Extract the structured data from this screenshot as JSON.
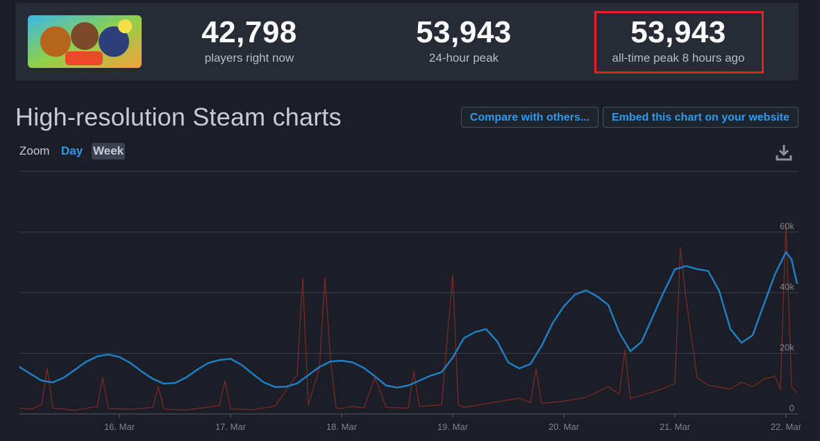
{
  "header": {
    "logo_alt": "Bloons TD 6",
    "stats": [
      {
        "value": "42,798",
        "label": "players right now"
      },
      {
        "value": "53,943",
        "label": "24-hour peak"
      },
      {
        "value": "53,943",
        "label": "all-time peak 8 hours ago"
      }
    ]
  },
  "section": {
    "title": "High-resolution Steam charts",
    "compare_button": "Compare with others...",
    "embed_button": "Embed this chart on your website"
  },
  "zoom": {
    "label": "Zoom",
    "day": "Day",
    "week": "Week"
  },
  "colors": {
    "background": "#1b1e26",
    "panel": "#262b36",
    "accent": "#2a9bf2",
    "players_line": "#1f7ec4",
    "twitch_line": "#7a2a22",
    "highlight": "#e0232b"
  },
  "chart_data": {
    "type": "line",
    "x_ticks": [
      "16. Mar",
      "17. Mar",
      "18. Mar",
      "19. Mar",
      "20. Mar",
      "21. Mar",
      "22. Mar"
    ],
    "y_ticks": [
      "0",
      "20k",
      "40k",
      "60k"
    ],
    "ylim": [
      0,
      62000
    ],
    "xlim": [
      15.1,
      22.1
    ],
    "grid": true,
    "series": [
      {
        "name": "",
        "color": "#1f7ec4",
        "x": [
          15.1,
          15.2,
          15.3,
          15.4,
          15.5,
          15.6,
          15.7,
          15.8,
          15.9,
          16.0,
          16.1,
          16.2,
          16.3,
          16.4,
          16.5,
          16.6,
          16.7,
          16.8,
          16.9,
          17.0,
          17.1,
          17.2,
          17.3,
          17.4,
          17.5,
          17.6,
          17.7,
          17.8,
          17.9,
          18.0,
          18.1,
          18.2,
          18.3,
          18.4,
          18.5,
          18.6,
          18.7,
          18.8,
          18.9,
          19.0,
          19.1,
          19.2,
          19.3,
          19.4,
          19.5,
          19.6,
          19.7,
          19.8,
          19.9,
          20.0,
          20.1,
          20.2,
          20.3,
          20.4,
          20.5,
          20.6,
          20.7,
          20.8,
          20.9,
          21.0,
          21.1,
          21.2,
          21.3,
          21.4,
          21.5,
          21.6,
          21.7,
          21.8,
          21.9,
          22.0,
          22.05,
          22.1
        ],
        "values": [
          15500,
          13200,
          11000,
          10400,
          12000,
          14600,
          17200,
          19000,
          19600,
          18800,
          16800,
          14000,
          11600,
          10000,
          10200,
          12000,
          14600,
          16800,
          17800,
          18200,
          16200,
          13200,
          10400,
          8900,
          9000,
          10100,
          12800,
          15500,
          17300,
          17600,
          17000,
          15200,
          12400,
          9400,
          8700,
          9400,
          11000,
          12600,
          13800,
          18600,
          25000,
          27000,
          28000,
          24000,
          17000,
          15000,
          16500,
          22500,
          30000,
          35500,
          39400,
          40800,
          38800,
          36000,
          26800,
          20700,
          23800,
          32000,
          40200,
          47700,
          48800,
          47800,
          47200,
          40500,
          28000,
          23500,
          26000,
          36000,
          46000,
          53400,
          51000,
          43000
        ]
      },
      {
        "name": "",
        "color": "#7a2a22",
        "x": [
          15.1,
          15.2,
          15.3,
          15.35,
          15.4,
          15.6,
          15.8,
          15.85,
          15.9,
          16.1,
          16.3,
          16.35,
          16.4,
          16.6,
          16.9,
          16.95,
          17.0,
          17.2,
          17.4,
          17.6,
          17.65,
          17.7,
          17.8,
          17.85,
          17.9,
          17.95,
          18.0,
          18.1,
          18.2,
          18.3,
          18.4,
          18.6,
          18.65,
          18.7,
          18.9,
          19.0,
          19.05,
          19.1,
          19.2,
          19.4,
          19.6,
          19.7,
          19.75,
          19.8,
          20.0,
          20.2,
          20.4,
          20.5,
          20.55,
          20.6,
          20.8,
          20.9,
          21.0,
          21.05,
          21.1,
          21.2,
          21.3,
          21.5,
          21.6,
          21.7,
          21.8,
          21.9,
          21.95,
          22.0,
          22.05,
          22.1
        ],
        "values": [
          2000,
          1500,
          3000,
          15000,
          2000,
          1200,
          2500,
          12000,
          1800,
          1500,
          2200,
          9000,
          1600,
          1300,
          2800,
          11000,
          1700,
          1400,
          2600,
          13000,
          45000,
          3000,
          15000,
          45000,
          18000,
          2000,
          1800,
          2500,
          2000,
          12000,
          2200,
          1900,
          14000,
          2500,
          3000,
          46000,
          3000,
          2200,
          2800,
          4000,
          5200,
          3800,
          15000,
          3500,
          4200,
          5500,
          9000,
          6500,
          21000,
          5000,
          7200,
          8500,
          10000,
          55000,
          38000,
          12000,
          9500,
          8200,
          10500,
          9000,
          11500,
          12500,
          8000,
          63000,
          9000,
          7000
        ]
      }
    ]
  }
}
